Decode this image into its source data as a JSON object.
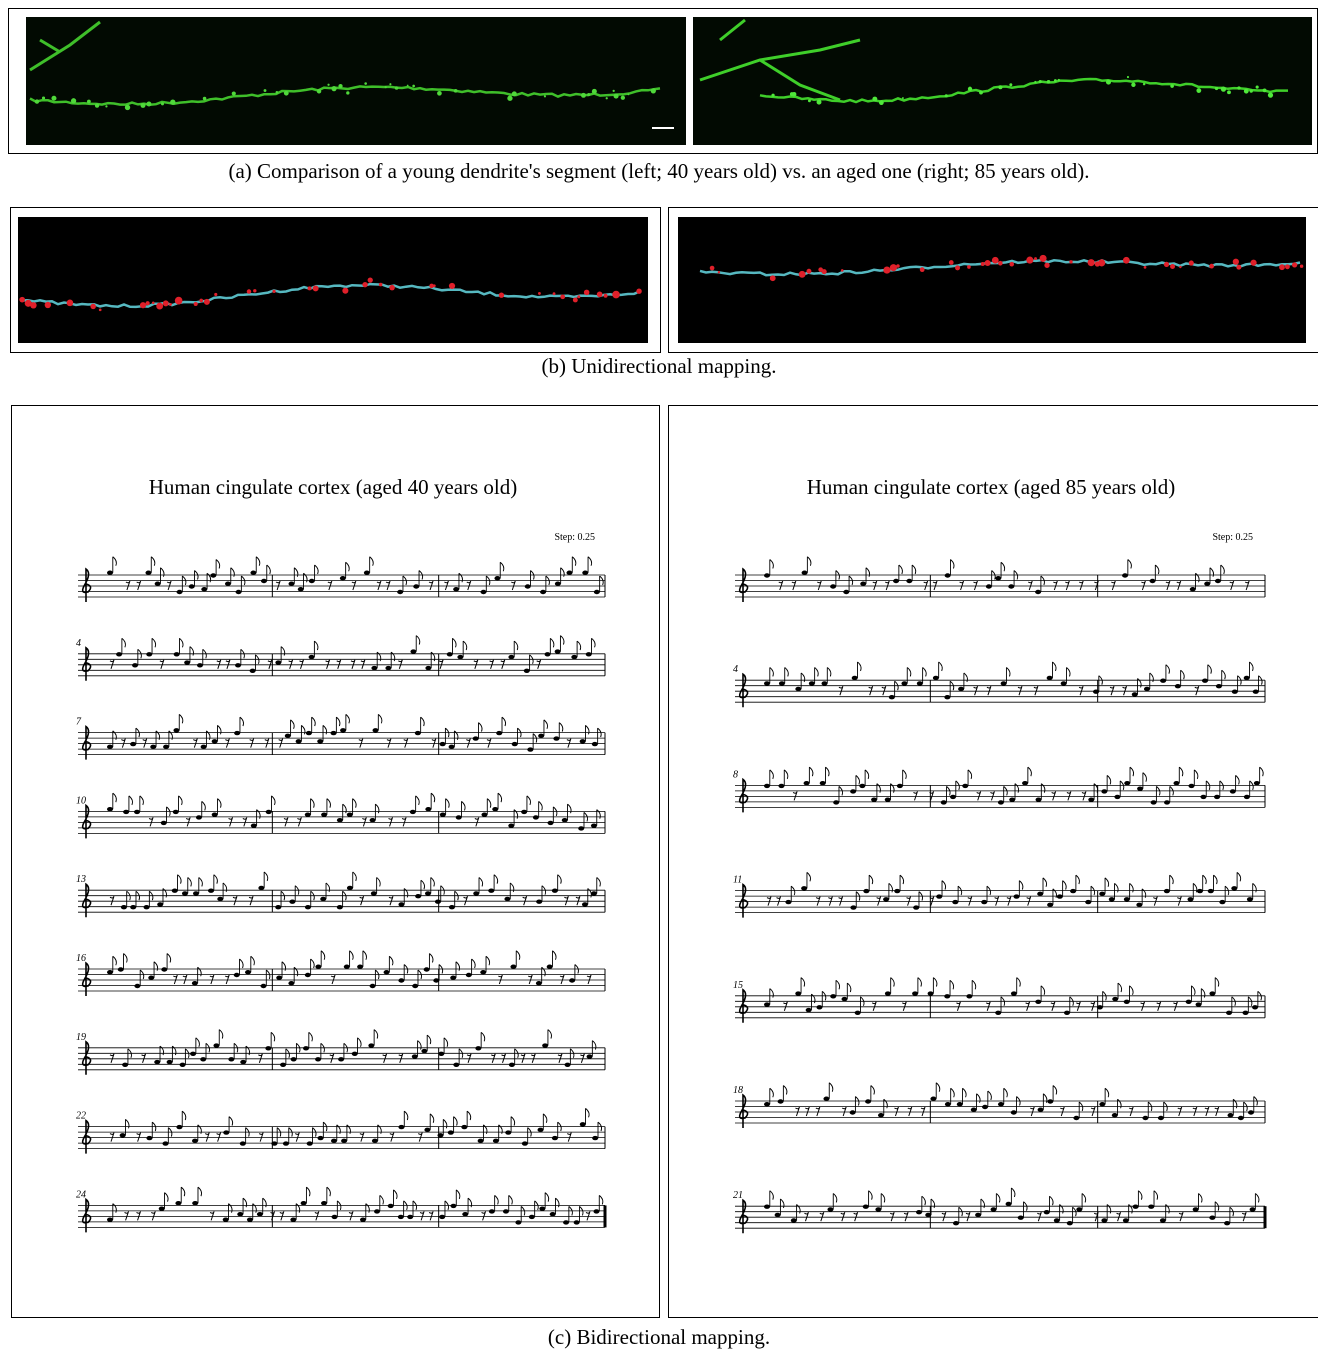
{
  "panel_a": {
    "caption": "(a) Comparison of a young dendrite's segment (left; 40 years old) vs. an aged one (right; 85 years old)."
  },
  "panel_b": {
    "caption": "(b) Unidirectional mapping."
  },
  "panel_c": {
    "caption": "(c)  Bidirectional mapping.",
    "scores": [
      {
        "title": "Human cingulate cortex (aged 40 years old)",
        "step": "Step: 0.25",
        "measure_numbers": [
          "4",
          "7",
          "10",
          "13",
          "16",
          "19",
          "22",
          "24"
        ]
      },
      {
        "title": "Human cingulate cortex (aged 85 years old)",
        "step": "Step: 0.25",
        "measure_numbers": [
          "4",
          "8",
          "11",
          "15",
          "18",
          "21"
        ]
      }
    ]
  }
}
